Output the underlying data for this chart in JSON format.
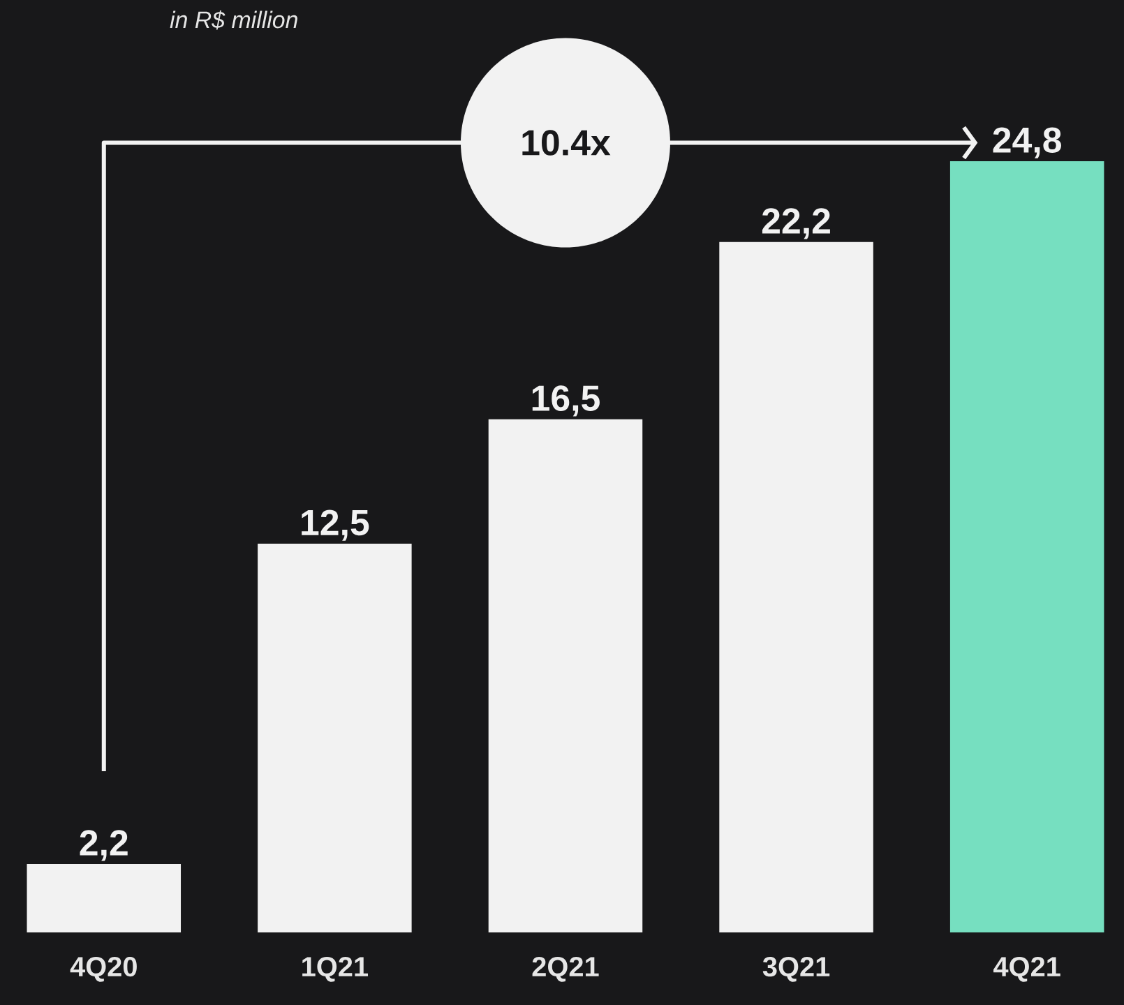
{
  "chart_data": {
    "type": "bar",
    "subtitle": "in R$ million",
    "categories": [
      "4Q20",
      "1Q21",
      "2Q21",
      "3Q21",
      "4Q21"
    ],
    "values": [
      2.2,
      12.5,
      16.5,
      22.2,
      24.8
    ],
    "colors": [
      "#f2f2f2",
      "#f2f2f2",
      "#f2f2f2",
      "#f2f2f2",
      "#76dfc0"
    ],
    "value_labels": [
      "2,2",
      "12,5",
      "16,5",
      "22,2",
      "24,8"
    ],
    "annotations": [
      "10.4x"
    ]
  }
}
